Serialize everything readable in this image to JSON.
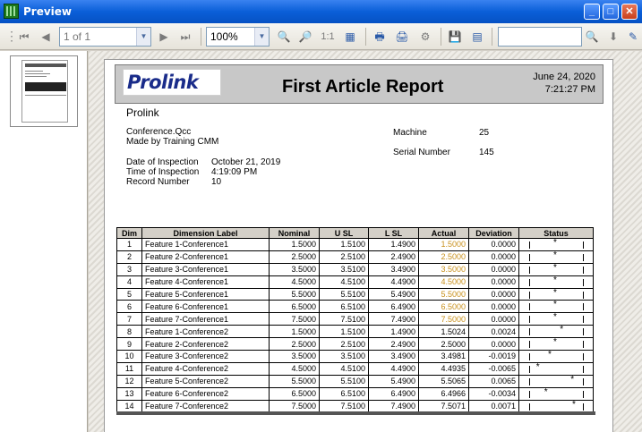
{
  "window": {
    "title": "Preview",
    "buttons": [
      "_",
      "□",
      "✕"
    ]
  },
  "toolbar": {
    "page_display": "1 of 1",
    "zoom": "100%",
    "zoom_actual_label": "1:1",
    "search_placeholder": ""
  },
  "report": {
    "logo": "Prolink",
    "title": "First Article Report",
    "date": "June 24, 2020",
    "time": "7:21:27 PM",
    "company": "Prolink",
    "file": "Conference.Qcc",
    "made_by": "Made by Training CMM",
    "labels": {
      "date_of_inspection": "Date of Inspection",
      "time_of_inspection": "Time of Inspection",
      "record_number": "Record Number",
      "machine": "Machine",
      "serial_number": "Serial Number"
    },
    "date_of_inspection": "October 21, 2019",
    "time_of_inspection": "4:19:09 PM",
    "record_number": "10",
    "machine": "25",
    "serial_number": "145"
  },
  "table": {
    "headers": [
      "Dim",
      "Dimension Label",
      "Nominal",
      "U SL",
      "L SL",
      "Actual",
      "Deviation",
      "Status"
    ],
    "rows": [
      {
        "dim": "1",
        "label": "Feature 1-Conference1",
        "nominal": "1.5000",
        "usl": "1.5100",
        "lsl": "1.4900",
        "actual": "1.5000",
        "deviation": "0.0000",
        "actual_color": "orange",
        "status": 0.5
      },
      {
        "dim": "2",
        "label": "Feature 2-Conference1",
        "nominal": "2.5000",
        "usl": "2.5100",
        "lsl": "2.4900",
        "actual": "2.5000",
        "deviation": "0.0000",
        "actual_color": "orange",
        "status": 0.5
      },
      {
        "dim": "3",
        "label": "Feature 3-Conference1",
        "nominal": "3.5000",
        "usl": "3.5100",
        "lsl": "3.4900",
        "actual": "3.5000",
        "deviation": "0.0000",
        "actual_color": "orange",
        "status": 0.5
      },
      {
        "dim": "4",
        "label": "Feature 4-Conference1",
        "nominal": "4.5000",
        "usl": "4.5100",
        "lsl": "4.4900",
        "actual": "4.5000",
        "deviation": "0.0000",
        "actual_color": "orange",
        "status": 0.5
      },
      {
        "dim": "5",
        "label": "Feature 5-Conference1",
        "nominal": "5.5000",
        "usl": "5.5100",
        "lsl": "5.4900",
        "actual": "5.5000",
        "deviation": "0.0000",
        "actual_color": "orange",
        "status": 0.5
      },
      {
        "dim": "6",
        "label": "Feature 6-Conference1",
        "nominal": "6.5000",
        "usl": "6.5100",
        "lsl": "6.4900",
        "actual": "6.5000",
        "deviation": "0.0000",
        "actual_color": "orange",
        "status": 0.5
      },
      {
        "dim": "7",
        "label": "Feature 7-Conference1",
        "nominal": "7.5000",
        "usl": "7.5100",
        "lsl": "7.4900",
        "actual": "7.5000",
        "deviation": "0.0000",
        "actual_color": "orange",
        "status": 0.5
      },
      {
        "dim": "8",
        "label": "Feature 1-Conference2",
        "nominal": "1.5000",
        "usl": "1.5100",
        "lsl": "1.4900",
        "actual": "1.5024",
        "deviation": "0.0024",
        "actual_color": "black",
        "status": 0.62
      },
      {
        "dim": "9",
        "label": "Feature 2-Conference2",
        "nominal": "2.5000",
        "usl": "2.5100",
        "lsl": "2.4900",
        "actual": "2.5000",
        "deviation": "0.0000",
        "actual_color": "black",
        "status": 0.5
      },
      {
        "dim": "10",
        "label": "Feature 3-Conference2",
        "nominal": "3.5000",
        "usl": "3.5100",
        "lsl": "3.4900",
        "actual": "3.4981",
        "deviation": "-0.0019",
        "actual_color": "black",
        "status": 0.4
      },
      {
        "dim": "11",
        "label": "Feature 4-Conference2",
        "nominal": "4.5000",
        "usl": "4.5100",
        "lsl": "4.4900",
        "actual": "4.4935",
        "deviation": "-0.0065",
        "actual_color": "black",
        "status": 0.18
      },
      {
        "dim": "12",
        "label": "Feature 5-Conference2",
        "nominal": "5.5000",
        "usl": "5.5100",
        "lsl": "5.4900",
        "actual": "5.5065",
        "deviation": "0.0065",
        "actual_color": "black",
        "status": 0.82
      },
      {
        "dim": "13",
        "label": "Feature 6-Conference2",
        "nominal": "6.5000",
        "usl": "6.5100",
        "lsl": "6.4900",
        "actual": "6.4966",
        "deviation": "-0.0034",
        "actual_color": "black",
        "status": 0.33
      },
      {
        "dim": "14",
        "label": "Feature 7-Conference2",
        "nominal": "7.5000",
        "usl": "7.5100",
        "lsl": "7.4900",
        "actual": "7.5071",
        "deviation": "0.0071",
        "actual_color": "black",
        "status": 0.85
      }
    ]
  },
  "colors": {
    "orange_actual": "#c8901c",
    "titlebar": "#0a5fd8"
  }
}
